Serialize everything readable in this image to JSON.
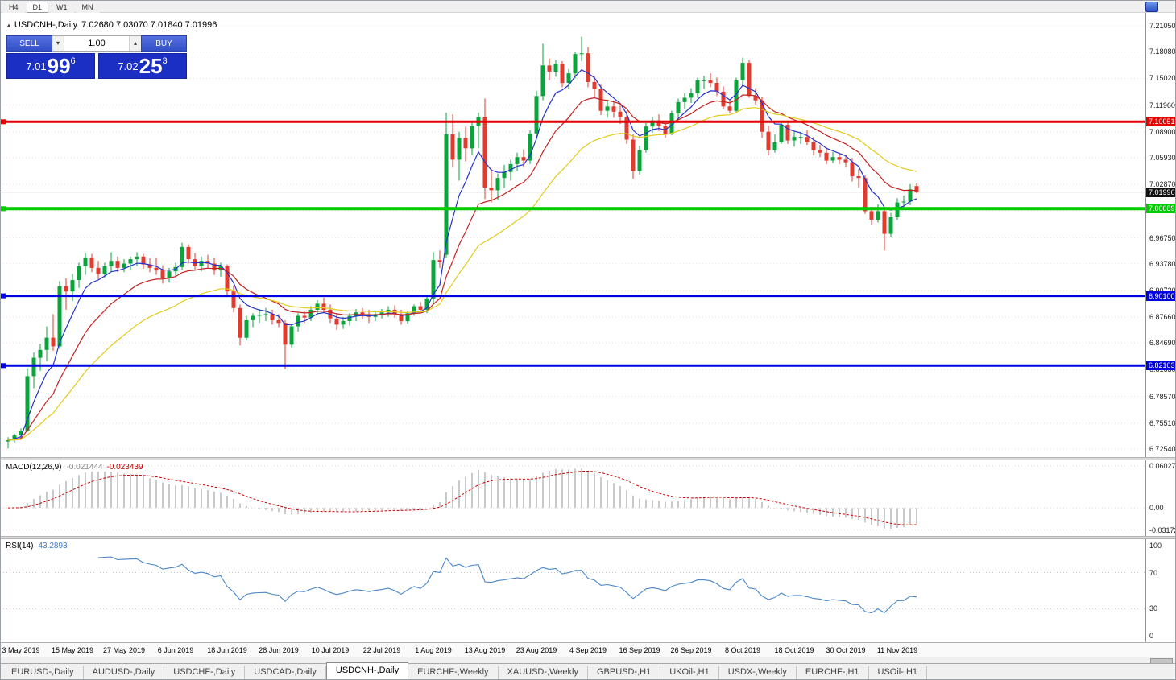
{
  "toolbar": {
    "timeframes": [
      {
        "label": "H4",
        "active": false
      },
      {
        "label": "D1",
        "active": true
      },
      {
        "label": "W1",
        "active": false
      },
      {
        "label": "MN",
        "active": false
      }
    ]
  },
  "chart_header": {
    "symbol_timeframe": "USDCNH-,Daily",
    "ohlc": "7.02680 7.03070 7.01840 7.01996"
  },
  "trade_panel": {
    "sell_label": "SELL",
    "buy_label": "BUY",
    "volume": "1.00",
    "sell_price": {
      "prefix": "7.01",
      "big": "99",
      "sup": "6"
    },
    "buy_price": {
      "prefix": "7.02",
      "big": "25",
      "sup": "3"
    }
  },
  "price_axis_labels": [
    "7.21050",
    "7.18080",
    "7.15020",
    "7.11960",
    "7.08900",
    "7.05930",
    "7.02870",
    "6.99810",
    "6.96750",
    "6.93780",
    "6.90720",
    "6.87660",
    "6.84690",
    "6.81630",
    "6.78570",
    "6.75510",
    "6.72540"
  ],
  "levels": [
    {
      "label": "7.10051",
      "value": 7.10051,
      "color": "#e60000",
      "width": 3
    },
    {
      "label": "7.00089",
      "value": 7.00089,
      "color": "#00cc00",
      "width": 4
    },
    {
      "label": "6.90100",
      "value": 6.901,
      "color": "#0000e0",
      "width": 3
    },
    {
      "label": "6.82103",
      "value": 6.82103,
      "color": "#0000e0",
      "width": 3
    }
  ],
  "current_price": {
    "label": "7.01996",
    "value": 7.01996
  },
  "tabs": [
    {
      "label": "EURUSD-,Daily",
      "active": false
    },
    {
      "label": "AUDUSD-,Daily",
      "active": false
    },
    {
      "label": "USDCHF-,Daily",
      "active": false
    },
    {
      "label": "USDCAD-,Daily",
      "active": false
    },
    {
      "label": "USDCNH-,Daily",
      "active": true
    },
    {
      "label": "EURCHF-,Weekly",
      "active": false
    },
    {
      "label": "XAUUSD-,Weekly",
      "active": false
    },
    {
      "label": "GBPUSD-,H1",
      "active": false
    },
    {
      "label": "UKOil-,H1",
      "active": false
    },
    {
      "label": "USDX-,Weekly",
      "active": false
    },
    {
      "label": "EURCHF-,H1",
      "active": false
    },
    {
      "label": "USOil-,H1",
      "active": false
    }
  ],
  "chart_data": {
    "type": "candlestick",
    "title": "USDCNH-,Daily",
    "y_min": 6.7254,
    "y_max": 7.2105,
    "colors": {
      "up": "#0aa33c",
      "down": "#e23a2e",
      "grid": "#e4e4e4",
      "current_price_line": "#9b9b9b"
    },
    "date_labels": [
      {
        "index": 2,
        "label": "3 May 2019"
      },
      {
        "index": 10,
        "label": "15 May 2019"
      },
      {
        "index": 18,
        "label": "27 May 2019"
      },
      {
        "index": 26,
        "label": "6 Jun 2019"
      },
      {
        "index": 34,
        "label": "18 Jun 2019"
      },
      {
        "index": 42,
        "label": "28 Jun 2019"
      },
      {
        "index": 50,
        "label": "10 Jul 2019"
      },
      {
        "index": 58,
        "label": "22 Jul 2019"
      },
      {
        "index": 66,
        "label": "1 Aug 2019"
      },
      {
        "index": 74,
        "label": "13 Aug 2019"
      },
      {
        "index": 82,
        "label": "23 Aug 2019"
      },
      {
        "index": 90,
        "label": "4 Sep 2019"
      },
      {
        "index": 98,
        "label": "16 Sep 2019"
      },
      {
        "index": 106,
        "label": "26 Sep 2019"
      },
      {
        "index": 114,
        "label": "8 Oct 2019"
      },
      {
        "index": 122,
        "label": "18 Oct 2019"
      },
      {
        "index": 130,
        "label": "30 Oct 2019"
      },
      {
        "index": 138,
        "label": "11 Nov 2019"
      }
    ],
    "moving_averages": [
      {
        "name": "ma-fast",
        "period": 6,
        "color": "#2433c8"
      },
      {
        "name": "ma-medium",
        "period": 14,
        "color": "#c22220"
      },
      {
        "name": "ma-slow",
        "period": 28,
        "color": "#e3ca1c"
      }
    ],
    "macd": {
      "name": "MACD(12,26,9)",
      "values": [
        "-0.021444",
        "-0.023439"
      ],
      "fast": 12,
      "slow": 26,
      "signal": 9,
      "axis_labels": [
        "0.06027",
        "0.00",
        "-0.03172"
      ],
      "histogram_color": "#bdbdbd",
      "signal_color": "#cc0000"
    },
    "rsi": {
      "name": "RSI(14)",
      "value": "43.2893",
      "period": 14,
      "axis_labels": [
        "100",
        "70",
        "30",
        "0"
      ],
      "levels": [
        70,
        30
      ],
      "color": "#4a86c8"
    },
    "candles": [
      [
        6.734,
        6.739,
        6.726,
        6.7355
      ],
      [
        6.7355,
        6.743,
        6.733,
        6.741
      ],
      [
        6.741,
        6.749,
        6.736,
        6.746
      ],
      [
        6.746,
        6.818,
        6.745,
        6.809
      ],
      [
        6.809,
        6.836,
        6.795,
        6.83
      ],
      [
        6.83,
        6.846,
        6.815,
        6.839
      ],
      [
        6.839,
        6.866,
        6.826,
        6.853
      ],
      [
        6.853,
        6.88,
        6.838,
        6.843
      ],
      [
        6.843,
        6.918,
        6.84,
        6.912
      ],
      [
        6.912,
        6.921,
        6.885,
        6.906
      ],
      [
        6.906,
        6.926,
        6.895,
        6.919
      ],
      [
        6.919,
        6.939,
        6.91,
        6.935
      ],
      [
        6.935,
        6.95,
        6.925,
        6.945
      ],
      [
        6.945,
        6.949,
        6.928,
        6.933
      ],
      [
        6.933,
        6.941,
        6.92,
        6.926
      ],
      [
        6.926,
        6.939,
        6.922,
        6.935
      ],
      [
        6.935,
        6.951,
        6.929,
        6.941
      ],
      [
        6.941,
        6.946,
        6.928,
        6.933
      ],
      [
        6.933,
        6.943,
        6.928,
        6.938
      ],
      [
        6.938,
        6.946,
        6.93,
        6.943
      ],
      [
        6.943,
        6.951,
        6.935,
        6.946
      ],
      [
        6.946,
        6.949,
        6.932,
        6.937
      ],
      [
        6.937,
        6.944,
        6.928,
        6.933
      ],
      [
        6.933,
        6.945,
        6.925,
        6.93
      ],
      [
        6.93,
        6.936,
        6.915,
        6.921
      ],
      [
        6.921,
        6.933,
        6.916,
        6.929
      ],
      [
        6.929,
        6.939,
        6.923,
        6.934
      ],
      [
        6.934,
        6.962,
        6.93,
        6.957
      ],
      [
        6.957,
        6.96,
        6.938,
        6.943
      ],
      [
        6.943,
        6.95,
        6.93,
        6.935
      ],
      [
        6.935,
        6.946,
        6.929,
        6.941
      ],
      [
        6.941,
        6.948,
        6.932,
        6.938
      ],
      [
        6.938,
        6.945,
        6.925,
        6.93
      ],
      [
        6.93,
        6.939,
        6.923,
        6.935
      ],
      [
        6.935,
        6.937,
        6.9,
        6.906
      ],
      [
        6.906,
        6.913,
        6.882,
        6.887
      ],
      [
        6.887,
        6.891,
        6.844,
        6.853
      ],
      [
        6.853,
        6.878,
        6.85,
        6.873
      ],
      [
        6.873,
        6.881,
        6.865,
        6.878
      ],
      [
        6.878,
        6.886,
        6.87,
        6.879
      ],
      [
        6.879,
        6.887,
        6.872,
        6.88
      ],
      [
        6.88,
        6.885,
        6.868,
        6.873
      ],
      [
        6.873,
        6.88,
        6.865,
        6.87
      ],
      [
        6.87,
        6.873,
        6.817,
        6.845
      ],
      [
        6.845,
        6.869,
        6.842,
        6.866
      ],
      [
        6.866,
        6.881,
        6.86,
        6.878
      ],
      [
        6.878,
        6.883,
        6.87,
        6.876
      ],
      [
        6.876,
        6.889,
        6.872,
        6.885
      ],
      [
        6.885,
        6.896,
        6.88,
        6.892
      ],
      [
        6.892,
        6.899,
        6.882,
        6.885
      ],
      [
        6.885,
        6.891,
        6.87,
        6.875
      ],
      [
        6.875,
        6.881,
        6.862,
        6.868
      ],
      [
        6.868,
        6.877,
        6.863,
        6.872
      ],
      [
        6.872,
        6.881,
        6.867,
        6.878
      ],
      [
        6.878,
        6.886,
        6.872,
        6.882
      ],
      [
        6.882,
        6.887,
        6.874,
        6.88
      ],
      [
        6.88,
        6.885,
        6.87,
        6.877
      ],
      [
        6.877,
        6.884,
        6.872,
        6.88
      ],
      [
        6.88,
        6.886,
        6.875,
        6.882
      ],
      [
        6.882,
        6.889,
        6.877,
        6.885
      ],
      [
        6.885,
        6.89,
        6.876,
        6.88
      ],
      [
        6.88,
        6.885,
        6.868,
        6.872
      ],
      [
        6.872,
        6.883,
        6.869,
        6.881
      ],
      [
        6.881,
        6.891,
        6.878,
        6.889
      ],
      [
        6.889,
        6.894,
        6.882,
        6.885
      ],
      [
        6.885,
        6.901,
        6.881,
        6.898
      ],
      [
        6.898,
        6.951,
        6.892,
        6.942
      ],
      [
        6.942,
        6.953,
        6.933,
        6.94
      ],
      [
        6.948,
        7.111,
        6.945,
        7.086
      ],
      [
        7.086,
        7.109,
        7.048,
        7.057
      ],
      [
        7.057,
        7.089,
        7.033,
        7.082
      ],
      [
        7.082,
        7.095,
        7.055,
        7.07
      ],
      [
        7.07,
        7.101,
        7.062,
        7.096
      ],
      [
        7.096,
        7.111,
        7.07,
        7.106
      ],
      [
        7.106,
        7.127,
        7.012,
        7.025
      ],
      [
        7.025,
        7.046,
        7.008,
        7.022
      ],
      [
        7.022,
        7.041,
        7.011,
        7.036
      ],
      [
        7.036,
        7.051,
        7.025,
        7.043
      ],
      [
        7.043,
        7.057,
        7.033,
        7.052
      ],
      [
        7.052,
        7.065,
        7.044,
        7.06
      ],
      [
        7.06,
        7.069,
        7.048,
        7.056
      ],
      [
        7.056,
        7.091,
        7.052,
        7.087
      ],
      [
        7.087,
        7.136,
        7.08,
        7.13
      ],
      [
        7.13,
        7.19,
        7.125,
        7.165
      ],
      [
        7.165,
        7.173,
        7.148,
        7.158
      ],
      [
        7.158,
        7.171,
        7.152,
        7.167
      ],
      [
        7.167,
        7.17,
        7.14,
        7.145
      ],
      [
        7.145,
        7.161,
        7.138,
        7.156
      ],
      [
        7.156,
        7.181,
        7.15,
        7.178
      ],
      [
        7.178,
        7.198,
        7.17,
        7.179
      ],
      [
        7.179,
        7.186,
        7.14,
        7.146
      ],
      [
        7.146,
        7.153,
        7.128,
        7.138
      ],
      [
        7.138,
        7.143,
        7.108,
        7.113
      ],
      [
        7.113,
        7.126,
        7.105,
        7.118
      ],
      [
        7.118,
        7.124,
        7.105,
        7.112
      ],
      [
        7.112,
        7.119,
        7.098,
        7.106
      ],
      [
        7.106,
        7.113,
        7.075,
        7.08
      ],
      [
        7.08,
        7.086,
        7.035,
        7.044
      ],
      [
        7.044,
        7.073,
        7.04,
        7.068
      ],
      [
        7.068,
        7.099,
        7.065,
        7.095
      ],
      [
        7.095,
        7.106,
        7.088,
        7.102
      ],
      [
        7.102,
        7.109,
        7.09,
        7.096
      ],
      [
        7.096,
        7.102,
        7.082,
        7.087
      ],
      [
        7.087,
        7.113,
        7.085,
        7.11
      ],
      [
        7.11,
        7.127,
        7.105,
        7.123
      ],
      [
        7.123,
        7.133,
        7.115,
        7.128
      ],
      [
        7.128,
        7.139,
        7.122,
        7.133
      ],
      [
        7.133,
        7.151,
        7.128,
        7.148
      ],
      [
        7.148,
        7.153,
        7.138,
        7.148
      ],
      [
        7.148,
        7.156,
        7.14,
        7.145
      ],
      [
        7.145,
        7.151,
        7.13,
        7.135
      ],
      [
        7.135,
        7.141,
        7.115,
        7.118
      ],
      [
        7.118,
        7.126,
        7.11,
        7.113
      ],
      [
        7.113,
        7.151,
        7.11,
        7.148
      ],
      [
        7.148,
        7.174,
        7.142,
        7.168
      ],
      [
        7.168,
        7.171,
        7.128,
        7.13
      ],
      [
        7.13,
        7.139,
        7.12,
        7.125
      ],
      [
        7.125,
        7.129,
        7.082,
        7.089
      ],
      [
        7.089,
        7.096,
        7.062,
        7.068
      ],
      [
        7.068,
        7.086,
        7.065,
        7.077
      ],
      [
        7.077,
        7.101,
        7.075,
        7.097
      ],
      [
        7.097,
        7.102,
        7.075,
        7.079
      ],
      [
        7.079,
        7.089,
        7.072,
        7.083
      ],
      [
        7.083,
        7.089,
        7.075,
        7.083
      ],
      [
        7.083,
        7.091,
        7.074,
        7.077
      ],
      [
        7.077,
        7.083,
        7.062,
        7.068
      ],
      [
        7.068,
        7.074,
        7.06,
        7.065
      ],
      [
        7.065,
        7.071,
        7.052,
        7.056
      ],
      [
        7.056,
        7.066,
        7.053,
        7.06
      ],
      [
        7.06,
        7.065,
        7.052,
        7.057
      ],
      [
        7.057,
        7.063,
        7.048,
        7.054
      ],
      [
        7.054,
        7.059,
        7.032,
        7.038
      ],
      [
        7.038,
        7.046,
        7.025,
        7.036
      ],
      [
        7.036,
        7.039,
        6.995,
        6.998
      ],
      [
        6.998,
        7.003,
        6.982,
        6.988
      ],
      [
        6.988,
        7.006,
        6.985,
        6.998
      ],
      [
        6.998,
        7.001,
        6.953,
        6.972
      ],
      [
        6.972,
        6.996,
        6.968,
        6.991
      ],
      [
        6.991,
        7.013,
        6.988,
        7.008
      ],
      [
        7.008,
        7.016,
        7.002,
        7.009
      ],
      [
        7.009,
        7.029,
        7.005,
        7.023
      ],
      [
        7.0268,
        7.0307,
        7.0184,
        7.02
      ]
    ]
  }
}
